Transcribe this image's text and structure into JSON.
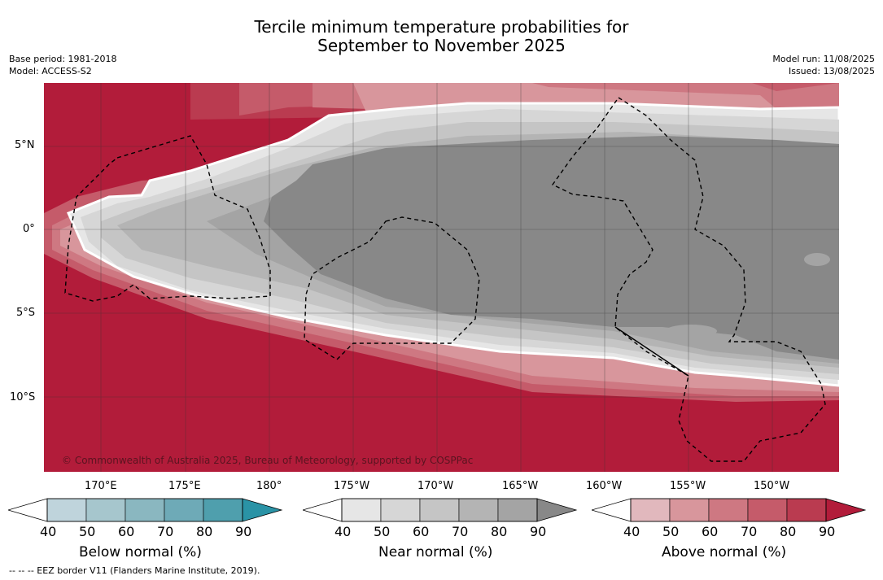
{
  "title_line1": "Tercile minimum temperature probabilities for",
  "title_line2": "September to November 2025",
  "base_period": "Base period: 1981-2018",
  "model": "Model: ACCESS-S2",
  "model_run": "Model run: 11/08/2025",
  "issued": "Issued: 13/08/2025",
  "copyright": "© Commonwealth of Australia 2025, Bureau of Meteorology, supported by COSPPac",
  "lat_labels": [
    "5°N",
    "0°",
    "5°S",
    "10°S"
  ],
  "lon_labels": [
    "170°E",
    "175°E",
    "180°",
    "175°W",
    "170°W",
    "165°W",
    "160°W",
    "155°W",
    "150°W"
  ],
  "legend_below": {
    "title": "Below normal (%)",
    "ticks": [
      "40",
      "50",
      "60",
      "70",
      "80",
      "90"
    ],
    "colors": [
      "#bfd4dc",
      "#a6c6cd",
      "#8ab7c0",
      "#6eaab7",
      "#4f9fad",
      "#2a93a6"
    ]
  },
  "legend_near": {
    "title": "Near normal (%)",
    "ticks": [
      "40",
      "50",
      "60",
      "70",
      "80",
      "90"
    ],
    "colors": [
      "#e6e6e6",
      "#d6d6d6",
      "#c5c5c5",
      "#b4b4b4",
      "#a4a4a4",
      "#888888"
    ]
  },
  "legend_above": {
    "title": "Above normal (%)",
    "ticks": [
      "40",
      "50",
      "60",
      "70",
      "80",
      "90"
    ],
    "colors": [
      "#e1b8bd",
      "#d8969c",
      "#ce7882",
      "#c55b6a",
      "#ba3b50",
      "#b21c3a"
    ]
  },
  "footer": "--  --  -- EEZ border V11 (Flanders Marine Institute, 2019)."
}
